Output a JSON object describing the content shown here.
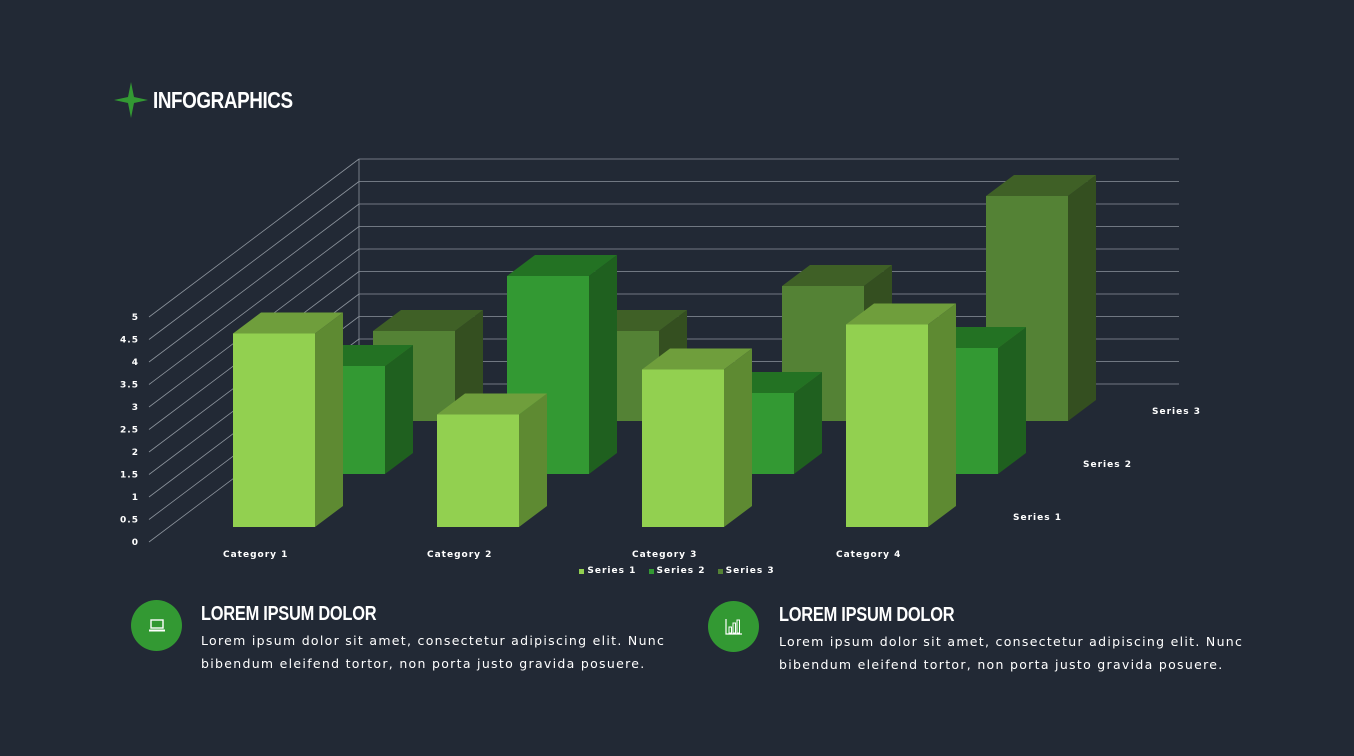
{
  "header": {
    "title": "INFOGRAPHICS"
  },
  "colors": {
    "background": "#222935",
    "series1_front": "#92D050",
    "series1_side": "#5E8A32",
    "series1_top": "#6F9E3C",
    "series2_front": "#339933",
    "series2_side": "#1F601F",
    "series2_top": "#237223",
    "series3_front": "#548235",
    "series3_side": "#344F20",
    "series3_top": "#3F6026",
    "accent": "#339933"
  },
  "chart_data": {
    "type": "bar",
    "subtype": "3d-column",
    "categories": [
      "Category 1",
      "Category 2",
      "Category 3",
      "Category 4"
    ],
    "series": [
      {
        "name": "Series 1",
        "values": [
          4.3,
          2.5,
          3.5,
          4.5
        ]
      },
      {
        "name": "Series 2",
        "values": [
          2.4,
          4.4,
          1.8,
          2.8
        ]
      },
      {
        "name": "Series 3",
        "values": [
          2.0,
          2.0,
          3.0,
          5.0
        ]
      }
    ],
    "yticks": [
      "0",
      "0.5",
      "1",
      "1.5",
      "2",
      "2.5",
      "3",
      "3.5",
      "4",
      "4.5",
      "5"
    ],
    "ylim": [
      0,
      5
    ],
    "legend_position": "bottom",
    "legend": [
      "Series 1",
      "Series 2",
      "Series 3"
    ]
  },
  "features": [
    {
      "icon": "laptop-icon",
      "title": "LOREM IPSUM DOLOR",
      "text": "Lorem ipsum dolor sit amet, consectetur adipiscing elit. Nunc bibendum eleifend tortor, non porta justo gravida posuere."
    },
    {
      "icon": "bar-chart-icon",
      "title": "LOREM IPSUM DOLOR",
      "text": "Lorem ipsum dolor sit amet, consectetur adipiscing elit. Nunc bibendum eleifend tortor, non porta justo gravida posuere."
    }
  ]
}
